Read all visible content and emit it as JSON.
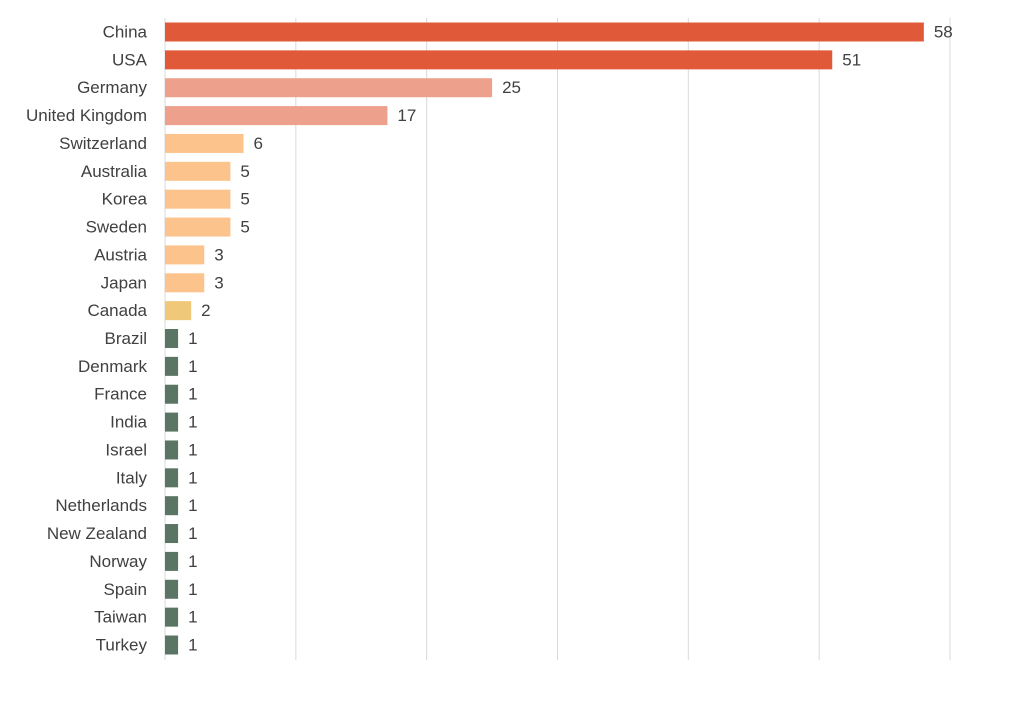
{
  "chart_data": {
    "type": "hbar",
    "categories": [
      "China",
      "USA",
      "Germany",
      "United Kingdom",
      "Switzerland",
      "Australia",
      "Korea",
      "Sweden",
      "Austria",
      "Japan",
      "Canada",
      "Brazil",
      "Denmark",
      "France",
      "India",
      "Israel",
      "Italy",
      "Netherlands",
      "New Zealand",
      "Norway",
      "Spain",
      "Taiwan",
      "Turkey"
    ],
    "values": [
      58,
      51,
      25,
      17,
      6,
      5,
      5,
      5,
      3,
      3,
      2,
      1,
      1,
      1,
      1,
      1,
      1,
      1,
      1,
      1,
      1,
      1,
      1
    ],
    "colors": [
      "#e05a3a",
      "#e05a3a",
      "#eda08c",
      "#eda08c",
      "#fcc38c",
      "#fcc38c",
      "#fcc38c",
      "#fcc38c",
      "#fcc38c",
      "#fcc38c",
      "#f0c87a",
      "#5a7563",
      "#5a7563",
      "#5a7563",
      "#5a7563",
      "#5a7563",
      "#5a7563",
      "#5a7563",
      "#5a7563",
      "#5a7563",
      "#5a7563",
      "#5a7563",
      "#5a7563"
    ],
    "xlim": [
      0,
      60
    ],
    "xticks": [
      0,
      10,
      20,
      30,
      40,
      50,
      60
    ],
    "grid": true
  }
}
